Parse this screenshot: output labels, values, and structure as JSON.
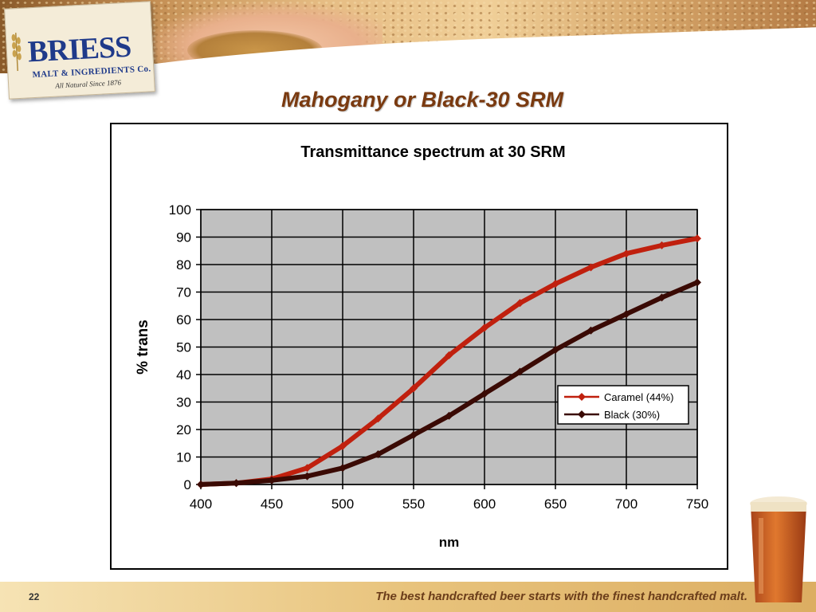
{
  "logo": {
    "name": "BRIESS",
    "subtitle": "MALT & INGREDIENTS Co.",
    "tagline": "All Natural Since 1876"
  },
  "slide": {
    "title": "Mahogany or Black-30 SRM",
    "page_number": "22"
  },
  "footer": {
    "tagline": "The best handcrafted beer starts with the finest handcrafted malt."
  },
  "colors": {
    "title": "#7a3a10",
    "plot_background": "#c0c0c0",
    "caramel": "#c0200e",
    "black": "#3a0a04"
  },
  "chart_data": {
    "type": "line",
    "title": "Transmittance spectrum at 30 SRM",
    "xlabel": "nm",
    "ylabel": "% trans",
    "xlim": [
      400,
      750
    ],
    "ylim": [
      0,
      100
    ],
    "xticks": [
      400,
      450,
      500,
      550,
      600,
      650,
      700,
      750
    ],
    "yticks": [
      0,
      10,
      20,
      30,
      40,
      50,
      60,
      70,
      80,
      90,
      100
    ],
    "grid": true,
    "legend_position": "right",
    "x": [
      400,
      425,
      450,
      475,
      500,
      525,
      550,
      575,
      600,
      625,
      650,
      675,
      700,
      725,
      750
    ],
    "series": [
      {
        "name": "Caramel (44%)",
        "values": [
          0,
          0.5,
          2,
          6,
          14,
          24,
          35,
          47,
          57,
          66,
          73,
          79,
          84,
          87,
          89.5
        ]
      },
      {
        "name": "Black (30%)",
        "values": [
          0,
          0.5,
          1.5,
          3,
          6,
          11,
          18,
          25,
          33,
          41,
          49,
          56,
          62,
          68,
          73.5
        ]
      }
    ]
  }
}
